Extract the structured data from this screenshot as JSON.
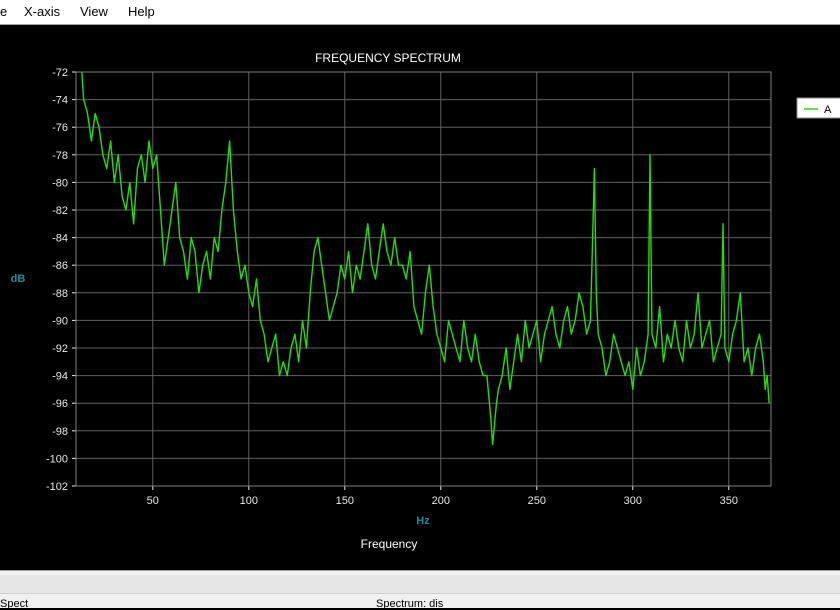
{
  "menu": {
    "items": [
      {
        "name": "file",
        "label": "e"
      },
      {
        "name": "x-axis",
        "label": "X-axis"
      },
      {
        "name": "view",
        "label": "View"
      },
      {
        "name": "help",
        "label": "Help"
      }
    ]
  },
  "status": {
    "left": "Spect",
    "right": "Spectrum: dis"
  },
  "chart_data": {
    "type": "line",
    "title": "FREQUENCY SPECTRUM",
    "xlabel": "Frequency",
    "xunit": "Hz",
    "ylabel": "dB",
    "xlim": [
      10,
      372
    ],
    "ylim": [
      -102,
      -72
    ],
    "xticks": [
      50,
      100,
      150,
      200,
      250,
      300,
      350
    ],
    "yticks": [
      -72,
      -74,
      -76,
      -78,
      -80,
      -82,
      -84,
      -86,
      -88,
      -90,
      -92,
      -94,
      -96,
      -98,
      -100,
      -102
    ],
    "grid": true,
    "legend_position": "right",
    "colors": {
      "background": "#000000",
      "grid": "#606060",
      "series": "#22e000",
      "axis_unit": "#1f8a9a",
      "tick": "#e8e8e8"
    },
    "series": [
      {
        "name": "A",
        "color": "#22e000",
        "x": [
          13,
          14,
          16,
          18,
          20,
          22,
          24,
          26,
          28,
          30,
          32,
          34,
          36,
          38,
          40,
          42,
          44,
          46,
          48,
          50,
          52,
          54,
          56,
          58,
          60,
          62,
          64,
          66,
          68,
          70,
          72,
          74,
          76,
          78,
          80,
          82,
          84,
          86,
          88,
          90,
          92,
          94,
          96,
          98,
          100,
          102,
          104,
          106,
          108,
          110,
          112,
          114,
          116,
          118,
          120,
          122,
          124,
          126,
          128,
          130,
          132,
          134,
          136,
          138,
          140,
          142,
          144,
          146,
          148,
          150,
          152,
          154,
          156,
          158,
          160,
          162,
          164,
          166,
          168,
          170,
          172,
          174,
          176,
          178,
          180,
          182,
          184,
          186,
          188,
          190,
          192,
          194,
          196,
          198,
          200,
          202,
          204,
          206,
          208,
          210,
          212,
          214,
          216,
          218,
          220,
          222,
          224,
          226,
          227,
          229,
          230,
          232,
          234,
          236,
          238,
          240,
          242,
          244,
          246,
          248,
          250,
          252,
          254,
          256,
          258,
          260,
          262,
          264,
          266,
          268,
          270,
          272,
          274,
          276,
          278,
          280,
          281,
          282,
          284,
          286,
          288,
          290,
          292,
          294,
          296,
          298,
          300,
          302,
          304,
          306,
          308,
          309,
          310,
          312,
          314,
          316,
          318,
          320,
          322,
          324,
          326,
          328,
          330,
          332,
          334,
          336,
          338,
          340,
          342,
          344,
          346,
          347,
          348,
          350,
          352,
          354,
          356,
          358,
          360,
          362,
          364,
          366,
          368,
          369,
          370,
          371
        ],
        "y": [
          -72,
          -74,
          -75,
          -77,
          -75,
          -76,
          -78,
          -79,
          -77,
          -80,
          -78,
          -81,
          -82,
          -80,
          -83,
          -79,
          -78,
          -80,
          -77,
          -79,
          -78,
          -82,
          -86,
          -84,
          -82,
          -80,
          -84,
          -85,
          -87,
          -84,
          -85,
          -88,
          -86,
          -85,
          -87,
          -84,
          -85,
          -82,
          -80,
          -77,
          -82,
          -85,
          -87,
          -86,
          -88,
          -89,
          -87,
          -90,
          -91,
          -93,
          -92,
          -91,
          -94,
          -93,
          -94,
          -92,
          -91,
          -93,
          -90,
          -92,
          -88,
          -85,
          -84,
          -86,
          -88,
          -90,
          -89,
          -88,
          -86,
          -87,
          -85,
          -88,
          -86,
          -87,
          -85,
          -83,
          -86,
          -87,
          -85,
          -83,
          -85,
          -86,
          -84,
          -86,
          -86,
          -87,
          -85,
          -89,
          -90,
          -91,
          -88,
          -86,
          -89,
          -91,
          -92,
          -93,
          -90,
          -91,
          -92,
          -93,
          -90,
          -92,
          -93,
          -91,
          -93,
          -94,
          -94,
          -97,
          -99,
          -96,
          -95,
          -94,
          -92,
          -95,
          -93,
          -91,
          -93,
          -90,
          -92,
          -91,
          -90,
          -93,
          -91,
          -90,
          -89,
          -91,
          -92,
          -90,
          -89,
          -91,
          -90,
          -88,
          -89,
          -91,
          -90,
          -79,
          -88,
          -91,
          -92,
          -94,
          -93,
          -91,
          -92,
          -93,
          -94,
          -93,
          -95,
          -92,
          -94,
          -93,
          -91,
          -78,
          -91,
          -92,
          -89,
          -93,
          -91,
          -92,
          -90,
          -92,
          -93,
          -90,
          -92,
          -91,
          -88,
          -92,
          -91,
          -90,
          -93,
          -92,
          -91,
          -83,
          -92,
          -93,
          -91,
          -90,
          -88,
          -93,
          -92,
          -94,
          -92,
          -91,
          -93,
          -95,
          -94,
          -96
        ]
      }
    ]
  }
}
